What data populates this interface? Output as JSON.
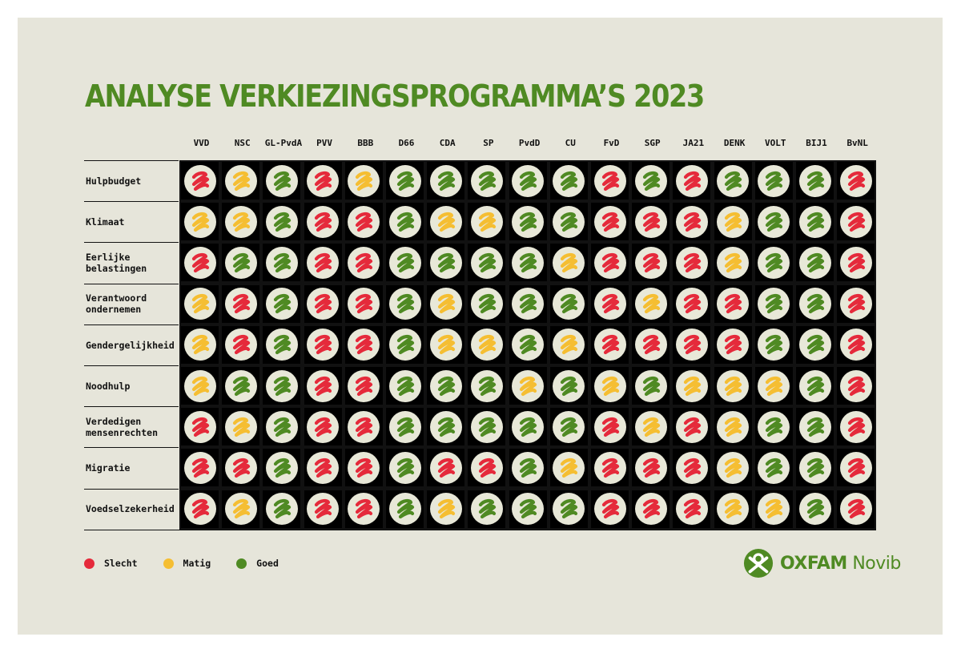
{
  "colors": {
    "slecht": "#e52a3b",
    "matig": "#f5be32",
    "goed": "#4f8a23",
    "background": "#e6e5da",
    "title": "#4f8a23"
  },
  "chart_data": {
    "type": "table",
    "title": "ANALYSE VERKIEZINGSPROGRAMMA’S 2023",
    "columns": [
      "VVD",
      "NSC",
      "GL-PvdA",
      "PVV",
      "BBB",
      "D66",
      "CDA",
      "SP",
      "PvdD",
      "CU",
      "FvD",
      "SGP",
      "JA21",
      "DENK",
      "VOLT",
      "BIJ1",
      "BvNL"
    ],
    "rows": [
      {
        "label": "Hulpbudget",
        "ratings": [
          "slecht",
          "matig",
          "goed",
          "slecht",
          "matig",
          "goed",
          "goed",
          "goed",
          "goed",
          "goed",
          "slecht",
          "goed",
          "slecht",
          "goed",
          "goed",
          "goed",
          "slecht"
        ]
      },
      {
        "label": "Klimaat",
        "ratings": [
          "matig",
          "matig",
          "goed",
          "slecht",
          "slecht",
          "goed",
          "matig",
          "matig",
          "goed",
          "goed",
          "slecht",
          "slecht",
          "slecht",
          "matig",
          "goed",
          "goed",
          "slecht"
        ]
      },
      {
        "label": "Eerlijke belastingen",
        "ratings": [
          "slecht",
          "goed",
          "goed",
          "slecht",
          "slecht",
          "goed",
          "goed",
          "goed",
          "goed",
          "matig",
          "slecht",
          "slecht",
          "slecht",
          "matig",
          "goed",
          "goed",
          "slecht"
        ]
      },
      {
        "label": "Verantwoord ondernemen",
        "ratings": [
          "matig",
          "slecht",
          "goed",
          "slecht",
          "slecht",
          "goed",
          "matig",
          "goed",
          "goed",
          "goed",
          "slecht",
          "matig",
          "slecht",
          "slecht",
          "goed",
          "goed",
          "slecht"
        ]
      },
      {
        "label": "Gendergelijkheid",
        "ratings": [
          "matig",
          "slecht",
          "goed",
          "slecht",
          "slecht",
          "goed",
          "matig",
          "matig",
          "goed",
          "matig",
          "slecht",
          "slecht",
          "slecht",
          "slecht",
          "goed",
          "goed",
          "slecht"
        ]
      },
      {
        "label": "Noodhulp",
        "ratings": [
          "matig",
          "goed",
          "goed",
          "slecht",
          "slecht",
          "goed",
          "goed",
          "goed",
          "matig",
          "goed",
          "matig",
          "goed",
          "matig",
          "matig",
          "matig",
          "goed",
          "slecht"
        ]
      },
      {
        "label": "Verdedigen mensenrechten",
        "ratings": [
          "slecht",
          "matig",
          "goed",
          "slecht",
          "slecht",
          "goed",
          "goed",
          "goed",
          "goed",
          "goed",
          "slecht",
          "matig",
          "slecht",
          "matig",
          "goed",
          "goed",
          "slecht"
        ]
      },
      {
        "label": "Migratie",
        "ratings": [
          "slecht",
          "slecht",
          "goed",
          "slecht",
          "slecht",
          "goed",
          "slecht",
          "slecht",
          "goed",
          "matig",
          "slecht",
          "slecht",
          "slecht",
          "matig",
          "goed",
          "goed",
          "slecht"
        ]
      },
      {
        "label": "Voedselzekerheid",
        "ratings": [
          "slecht",
          "matig",
          "goed",
          "slecht",
          "slecht",
          "goed",
          "matig",
          "goed",
          "goed",
          "goed",
          "slecht",
          "slecht",
          "slecht",
          "matig",
          "matig",
          "goed",
          "slecht"
        ]
      }
    ],
    "legend": [
      {
        "key": "slecht",
        "label": "Slecht"
      },
      {
        "key": "matig",
        "label": "Matig"
      },
      {
        "key": "goed",
        "label": "Goed"
      }
    ]
  },
  "logo": {
    "brand": "OXFAM",
    "sub": "Novib"
  }
}
